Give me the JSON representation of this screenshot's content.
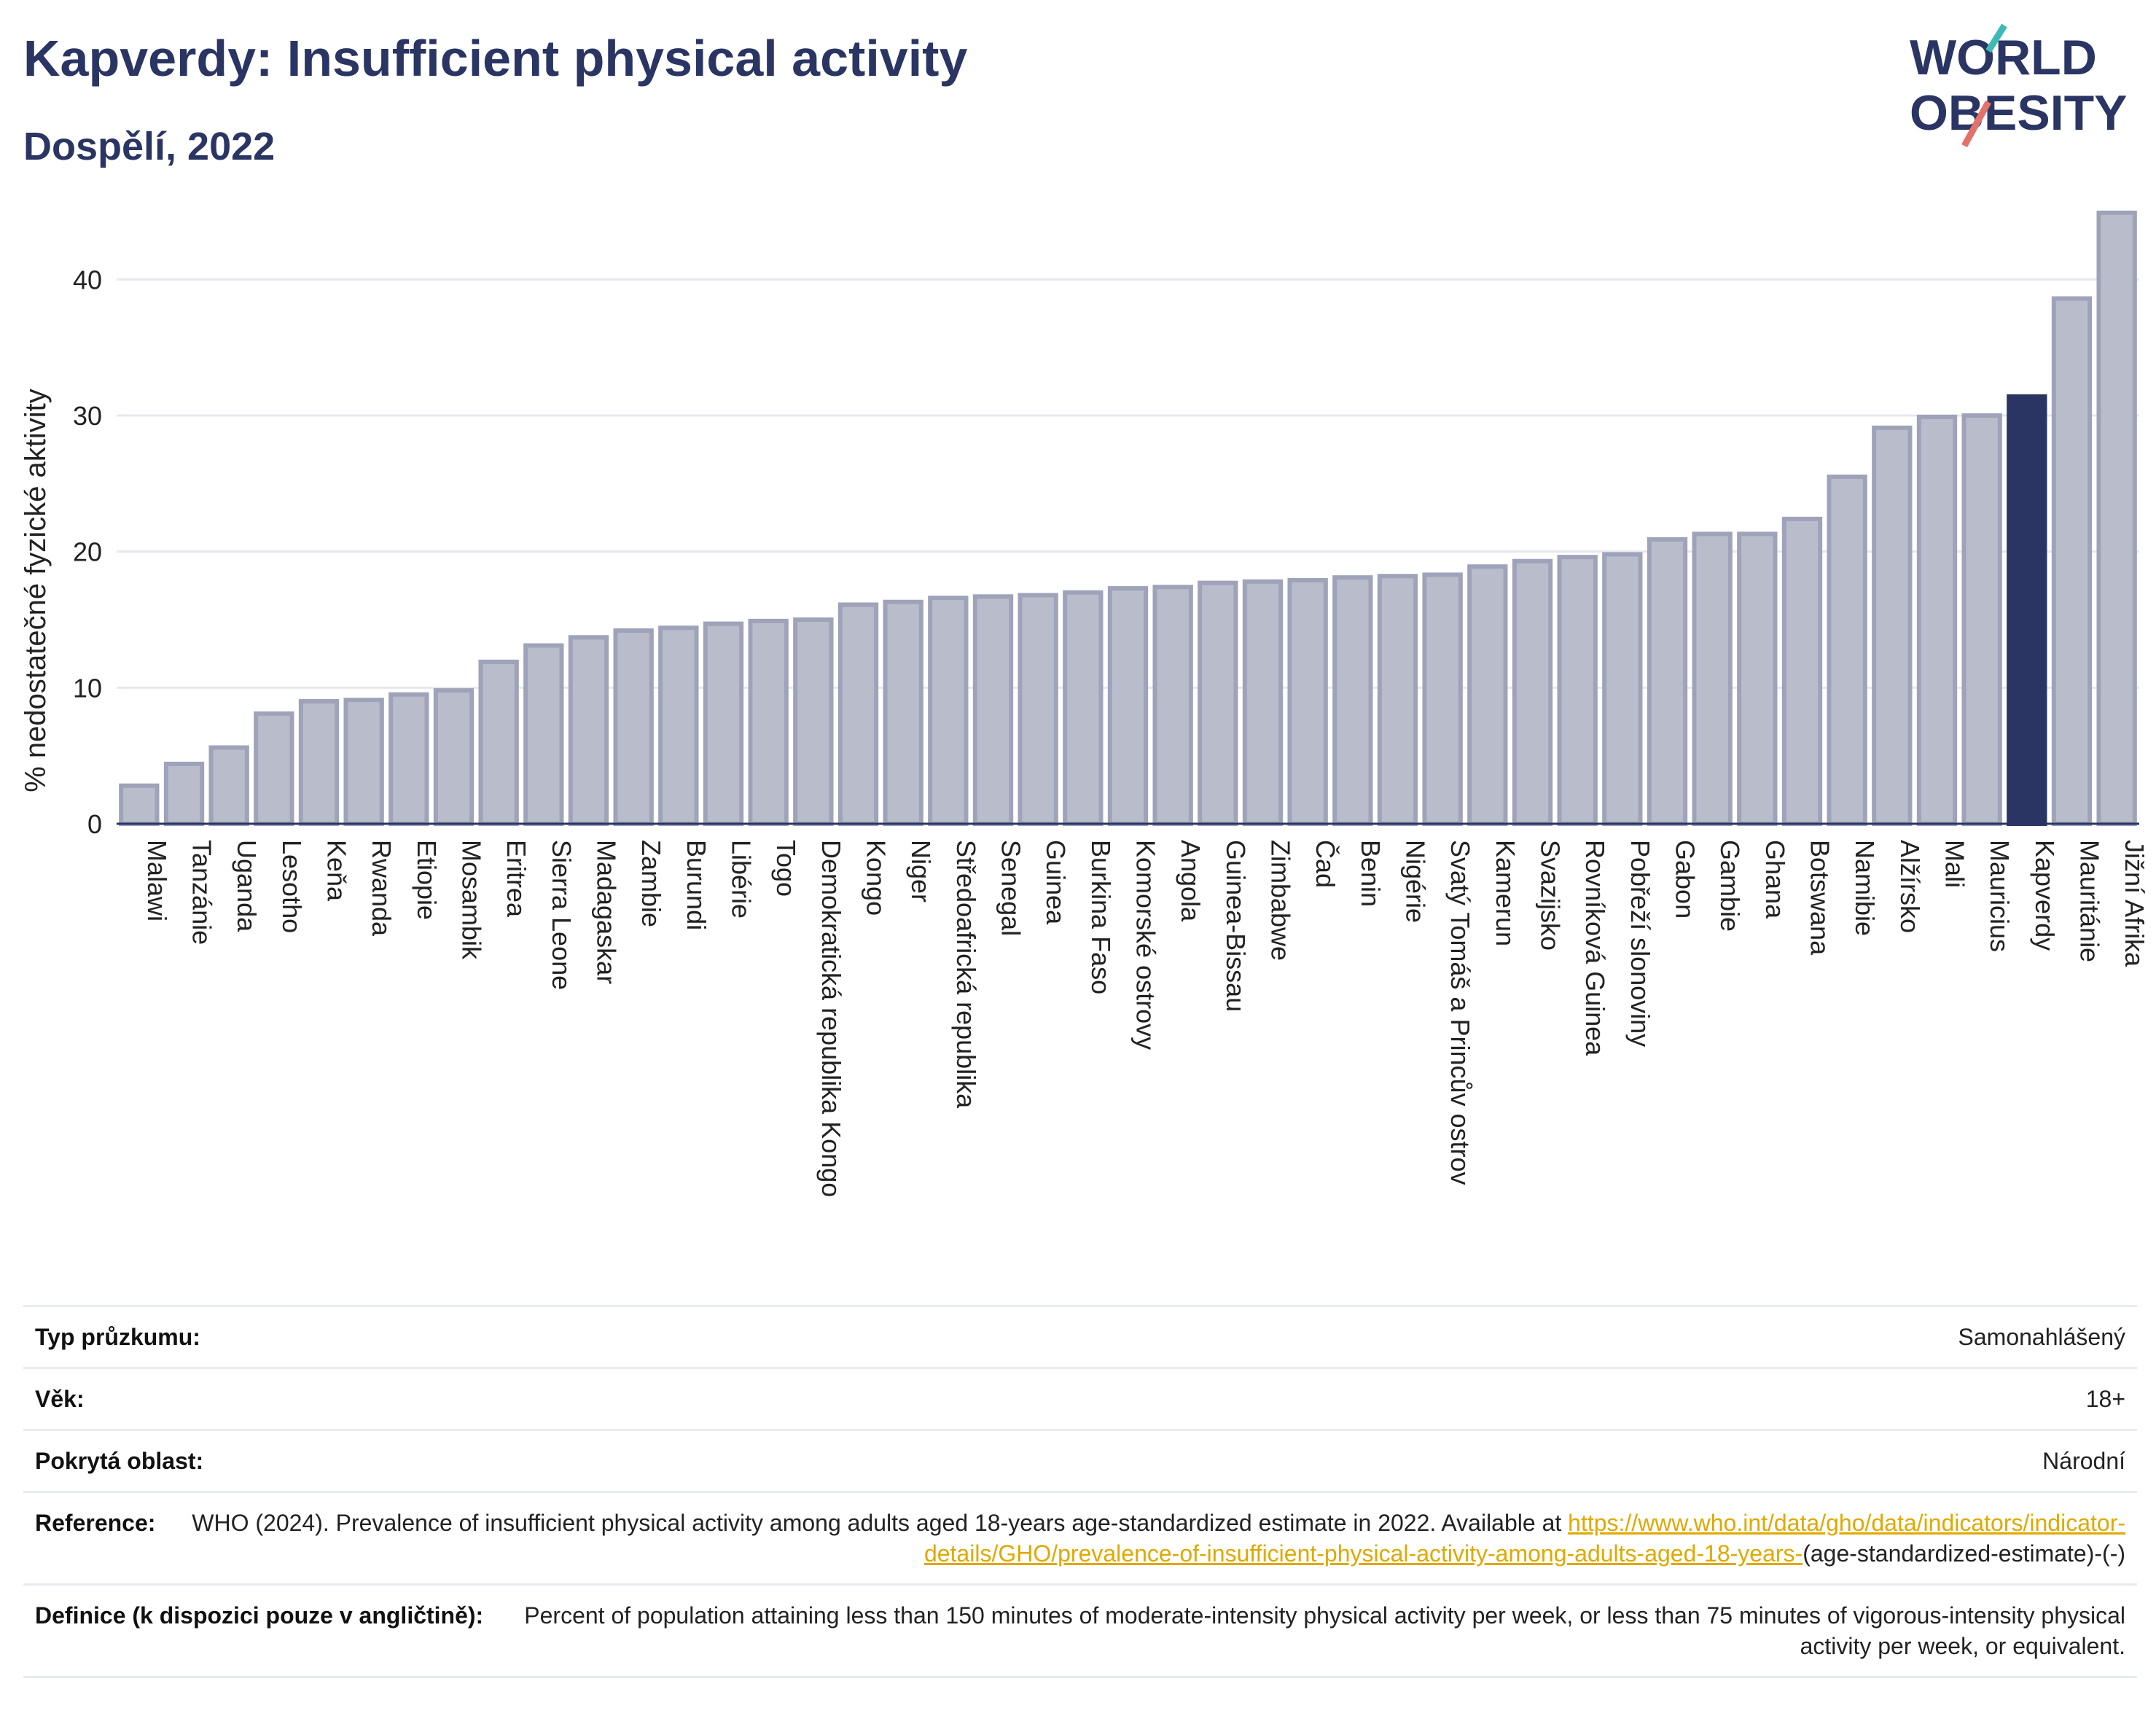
{
  "header": {
    "title": "Kapverdy: Insufficient physical activity",
    "subtitle": "Dospělí, 2022",
    "logo_line1": "WORLD",
    "logo_line2": "OBESITY"
  },
  "colors": {
    "bar_default": "#b9bccb",
    "bar_default_border": "#9ea3b9",
    "bar_highlight": "#2a3563",
    "title": "#2a3563",
    "logo_accent_teal": "#3fb9b3",
    "logo_accent_red": "#e2726a",
    "link": "#e0a800"
  },
  "chart_data": {
    "type": "bar",
    "ylabel": "% nedostatečné fyzické aktivity",
    "xlabel": "",
    "ylim": [
      0,
      45
    ],
    "yticks": [
      0,
      10,
      20,
      30,
      40
    ],
    "grid": true,
    "highlight": "Kapverdy",
    "categories": [
      "Malawi",
      "Tanzánie",
      "Uganda",
      "Lesotho",
      "Keňa",
      "Rwanda",
      "Etiopie",
      "Mosambik",
      "Eritrea",
      "Sierra Leone",
      "Madagaskar",
      "Zambie",
      "Burundi",
      "Libérie",
      "Togo",
      "Demokratická republika Kongo",
      "Kongo",
      "Niger",
      "Středoafrická republika",
      "Senegal",
      "Guinea",
      "Burkina Faso",
      "Komorské ostrovy",
      "Angola",
      "Guinea-Bissau",
      "Zimbabwe",
      "Čad",
      "Benin",
      "Nigérie",
      "Svatý Tomáš a Princův ostrov",
      "Kamerun",
      "Svazijsko",
      "Rovníková Guinea",
      "Pobřeží slonoviny",
      "Gabon",
      "Gambie",
      "Ghana",
      "Botswana",
      "Namibie",
      "Alžírsko",
      "Mali",
      "Mauricius",
      "Kapverdy",
      "Mauritánie",
      "Jižní Afrika"
    ],
    "values": [
      2.8,
      4.4,
      5.6,
      8.1,
      9.0,
      9.1,
      9.5,
      9.8,
      11.9,
      13.1,
      13.7,
      14.2,
      14.4,
      14.7,
      14.9,
      15.0,
      16.1,
      16.3,
      16.6,
      16.7,
      16.8,
      17.0,
      17.3,
      17.4,
      17.7,
      17.8,
      17.9,
      18.1,
      18.2,
      18.3,
      18.9,
      19.3,
      19.6,
      19.8,
      20.9,
      21.3,
      21.3,
      22.4,
      25.5,
      29.1,
      29.9,
      30.0,
      31.4,
      38.6,
      44.9
    ]
  },
  "info": {
    "rows": [
      {
        "key": "Typ průzkumu:",
        "value": "Samonahlášený"
      },
      {
        "key": "Věk:",
        "value": "18+"
      },
      {
        "key": "Pokrytá oblast:",
        "value": "Národní"
      }
    ],
    "reference_key": "Reference:",
    "reference_text": "WHO (2024). Prevalence of insufficient physical activity among adults aged 18-years age-standardized estimate in 2022. Available at",
    "reference_link": "https://www.who.int/data/gho/data/indicators/indicator-details/GHO/prevalence-of-insufficient-physical-activity-among-adults-aged-18-years-",
    "reference_suffix": "(age-standardized-estimate)-(-)",
    "definition_key": "Definice (k dispozici pouze v angličtině):",
    "definition_text": "Percent of population attaining less than 150 minutes of moderate-intensity physical activity per week, or less than 75 minutes of vigorous-intensity physical activity per week, or equivalent."
  }
}
